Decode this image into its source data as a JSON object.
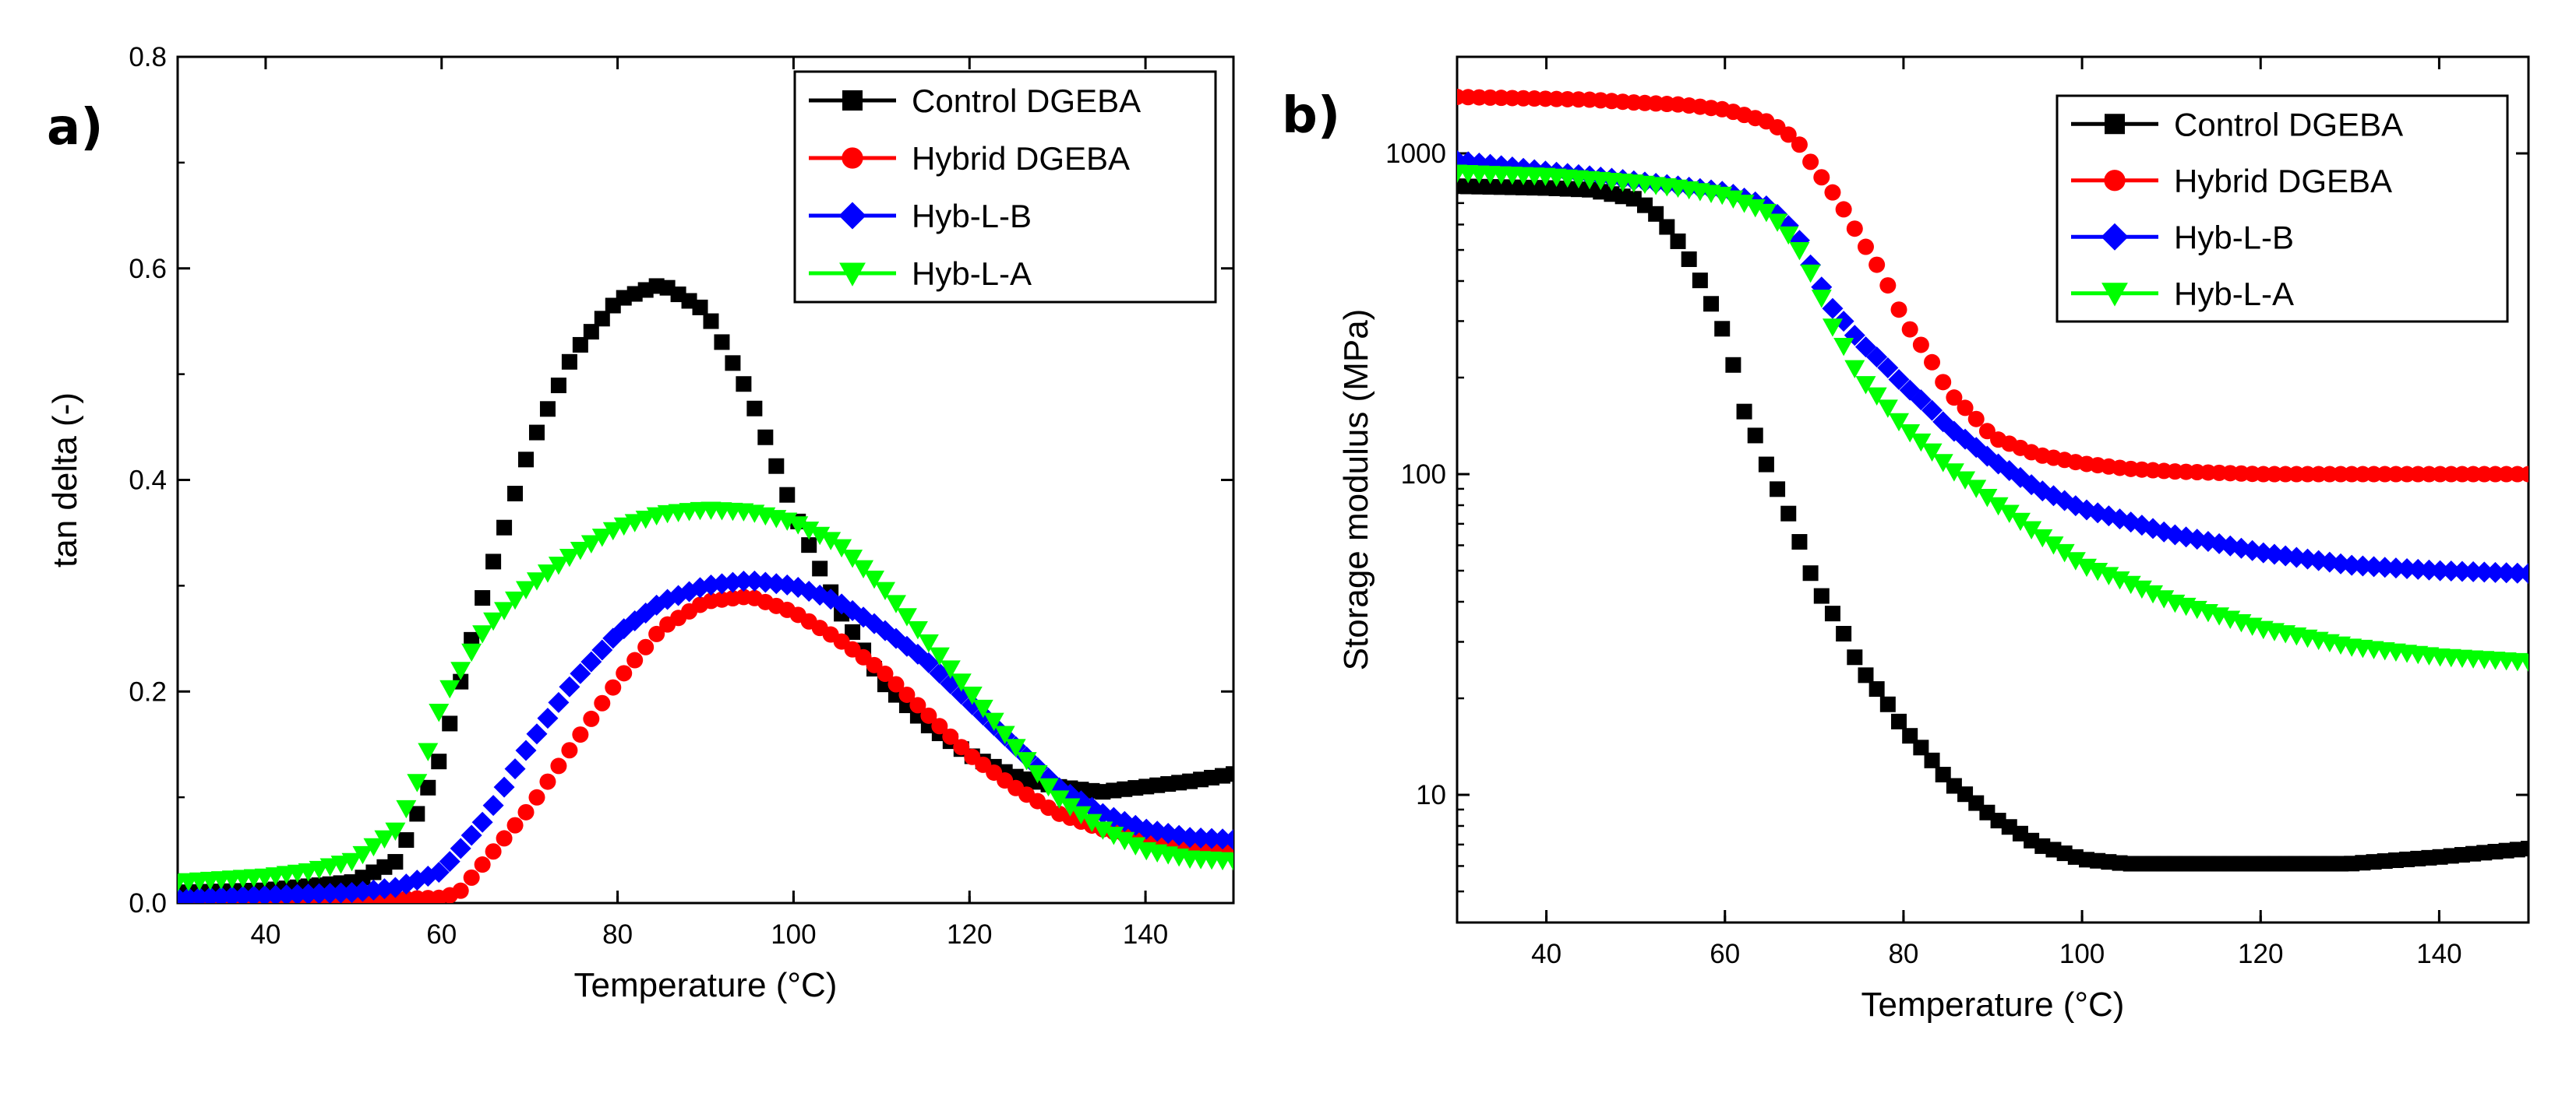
{
  "colors": {
    "control": "#000000",
    "hybrid": "#ff0000",
    "hyb_l_b": "#0000ff",
    "hyb_l_a": "#00ff00"
  },
  "chart_data": [
    {
      "type": "scatter",
      "panel_label": "a)",
      "xlabel": "Temperature (°C)",
      "ylabel": "tan delta (-)",
      "xlim": [
        30,
        150
      ],
      "ylim": [
        0,
        0.8
      ],
      "x_ticks": [
        40,
        60,
        80,
        100,
        120,
        140
      ],
      "y_ticks": [
        0.0,
        0.2,
        0.4,
        0.6,
        0.8
      ],
      "y_tick_labels": [
        "0.0",
        "0.2",
        "0.4",
        "0.6",
        "0.8"
      ],
      "yscale": "linear",
      "legend_position": "top-right",
      "series": [
        {
          "name": "Control DGEBA",
          "color_key": "control",
          "marker": "square",
          "x": [
            30,
            40,
            50,
            55,
            60,
            65,
            70,
            75,
            80,
            85,
            90,
            95,
            100,
            105,
            110,
            115,
            120,
            125,
            130,
            135,
            140,
            145,
            150
          ],
          "y": [
            0.01,
            0.012,
            0.02,
            0.04,
            0.14,
            0.3,
            0.43,
            0.52,
            0.57,
            0.585,
            0.56,
            0.48,
            0.37,
            0.28,
            0.21,
            0.17,
            0.14,
            0.12,
            0.11,
            0.105,
            0.11,
            0.115,
            0.122
          ]
        },
        {
          "name": "Hybrid DGEBA",
          "color_key": "hybrid",
          "marker": "circle",
          "x": [
            30,
            40,
            50,
            60,
            62,
            65,
            70,
            75,
            80,
            85,
            90,
            95,
            100,
            105,
            110,
            115,
            120,
            125,
            130,
            135,
            140,
            145,
            150
          ],
          "y": [
            0.002,
            0.002,
            0.003,
            0.005,
            0.01,
            0.04,
            0.09,
            0.15,
            0.21,
            0.26,
            0.285,
            0.29,
            0.275,
            0.25,
            0.22,
            0.18,
            0.14,
            0.11,
            0.085,
            0.07,
            0.06,
            0.055,
            0.05
          ]
        },
        {
          "name": "Hyb-L-B",
          "color_key": "hyb_l_b",
          "marker": "diamond",
          "x": [
            30,
            40,
            50,
            55,
            60,
            65,
            70,
            75,
            80,
            85,
            90,
            95,
            100,
            105,
            110,
            115,
            120,
            125,
            130,
            135,
            140,
            145,
            150
          ],
          "y": [
            0.005,
            0.007,
            0.01,
            0.015,
            0.03,
            0.08,
            0.15,
            0.21,
            0.255,
            0.285,
            0.3,
            0.305,
            0.3,
            0.285,
            0.26,
            0.23,
            0.19,
            0.15,
            0.11,
            0.085,
            0.07,
            0.062,
            0.06
          ]
        },
        {
          "name": "Hyb-L-A",
          "color_key": "hyb_l_a",
          "marker": "triangle-down",
          "x": [
            30,
            40,
            45,
            50,
            55,
            58,
            60,
            65,
            70,
            75,
            80,
            85,
            90,
            95,
            100,
            105,
            110,
            115,
            120,
            125,
            130,
            135,
            140,
            145,
            150
          ],
          "y": [
            0.02,
            0.025,
            0.03,
            0.04,
            0.07,
            0.13,
            0.19,
            0.26,
            0.3,
            0.33,
            0.355,
            0.368,
            0.372,
            0.37,
            0.36,
            0.34,
            0.3,
            0.25,
            0.2,
            0.15,
            0.1,
            0.07,
            0.05,
            0.042,
            0.04
          ]
        }
      ]
    },
    {
      "type": "scatter",
      "panel_label": "b)",
      "xlabel": "Temperature (°C)",
      "ylabel": "Storage modulus (MPa)",
      "xlim": [
        30,
        150
      ],
      "ylim": [
        4,
        2000
      ],
      "x_ticks": [
        40,
        60,
        80,
        100,
        120,
        140
      ],
      "y_ticks": [
        10,
        100,
        1000
      ],
      "y_tick_labels": [
        "10",
        "100",
        "1000"
      ],
      "yscale": "log",
      "legend_position": "top-right",
      "series": [
        {
          "name": "Control DGEBA",
          "color_key": "control",
          "marker": "square",
          "x": [
            30,
            40,
            45,
            50,
            52,
            55,
            58,
            60,
            62,
            65,
            68,
            70,
            75,
            80,
            85,
            90,
            95,
            100,
            105,
            110,
            120,
            130,
            140,
            150
          ],
          "y": [
            790,
            780,
            770,
            720,
            660,
            520,
            360,
            270,
            160,
            100,
            65,
            45,
            25,
            16,
            11,
            8.5,
            7.0,
            6.3,
            6.1,
            6.1,
            6.1,
            6.1,
            6.4,
            6.8
          ]
        },
        {
          "name": "Hybrid DGEBA",
          "color_key": "hybrid",
          "marker": "circle",
          "x": [
            30,
            40,
            45,
            50,
            55,
            60,
            65,
            68,
            70,
            75,
            80,
            85,
            90,
            95,
            100,
            105,
            110,
            120,
            130,
            140,
            150
          ],
          "y": [
            1500,
            1480,
            1470,
            1440,
            1420,
            1370,
            1250,
            1100,
            900,
            550,
            300,
            180,
            130,
            115,
            108,
            104,
            102,
            100,
            100,
            100,
            100
          ]
        },
        {
          "name": "Hyb-L-B",
          "color_key": "hyb_l_b",
          "marker": "diamond",
          "x": [
            30,
            40,
            50,
            55,
            60,
            65,
            68,
            70,
            72,
            75,
            80,
            85,
            90,
            95,
            100,
            110,
            120,
            130,
            140,
            150
          ],
          "y": [
            950,
            880,
            820,
            790,
            760,
            680,
            560,
            420,
            330,
            260,
            190,
            140,
            110,
            90,
            78,
            65,
            57,
            52,
            50,
            49
          ]
        },
        {
          "name": "Hyb-L-A",
          "color_key": "hyb_l_a",
          "marker": "triangle-down",
          "x": [
            30,
            40,
            50,
            55,
            60,
            65,
            68,
            70,
            72,
            75,
            80,
            85,
            90,
            95,
            100,
            110,
            120,
            130,
            140,
            150
          ],
          "y": [
            870,
            850,
            810,
            780,
            740,
            650,
            520,
            400,
            290,
            200,
            140,
            105,
            82,
            65,
            52,
            40,
            33,
            29,
            27,
            26
          ]
        }
      ]
    }
  ]
}
